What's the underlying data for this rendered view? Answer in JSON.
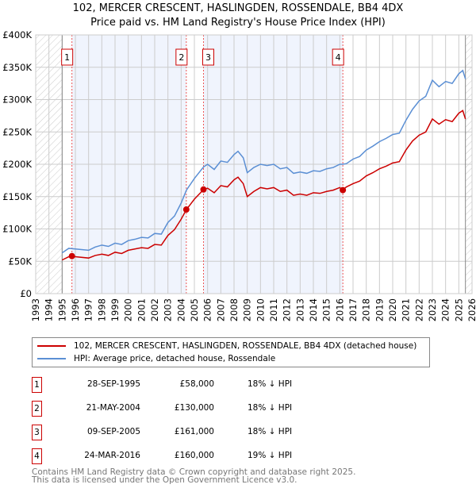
{
  "title": "102, MERCER CRESCENT, HASLINGDEN, ROSSENDALE, BB4 4DX",
  "subtitle": "Price paid vs. HM Land Registry's House Price Index (HPI)",
  "chart_data": {
    "type": "line",
    "xlim": [
      1993,
      2026
    ],
    "ylim": [
      0,
      400000
    ],
    "x_ticks": [
      "1993",
      "1994",
      "1995",
      "1996",
      "1997",
      "1998",
      "1999",
      "2000",
      "2001",
      "2002",
      "2003",
      "2004",
      "2005",
      "2006",
      "2007",
      "2008",
      "2009",
      "2010",
      "2011",
      "2012",
      "2013",
      "2014",
      "2015",
      "2016",
      "2017",
      "2018",
      "2019",
      "2020",
      "2021",
      "2022",
      "2023",
      "2024",
      "2025",
      "2026"
    ],
    "y_ticks": [
      {
        "v": 0,
        "label": "£0"
      },
      {
        "v": 50000,
        "label": "£50K"
      },
      {
        "v": 100000,
        "label": "£100K"
      },
      {
        "v": 150000,
        "label": "£150K"
      },
      {
        "v": 200000,
        "label": "£200K"
      },
      {
        "v": 250000,
        "label": "£250K"
      },
      {
        "v": 300000,
        "label": "£300K"
      },
      {
        "v": 350000,
        "label": "£350K"
      },
      {
        "v": 400000,
        "label": "£400K"
      }
    ],
    "series": [
      {
        "name": "102, MERCER CRESCENT, HASLINGDEN, ROSSENDALE, BB4 4DX (detached house)",
        "color": "#cc0000",
        "x": [
          1995,
          1995.5,
          1996,
          1997,
          1997.5,
          1998,
          1998.5,
          1999,
          1999.5,
          2000,
          2000.5,
          2001,
          2001.5,
          2002,
          2002.5,
          2003,
          2003.5,
          2004,
          2004.4,
          2005,
          2005.7,
          2006,
          2006.5,
          2007,
          2007.5,
          2008,
          2008.3,
          2008.7,
          2009,
          2009.5,
          2010,
          2010.5,
          2011,
          2011.5,
          2012,
          2012.5,
          2013,
          2013.5,
          2014,
          2014.5,
          2015,
          2015.5,
          2016,
          2016.2,
          2016.5,
          2017,
          2017.5,
          2018,
          2018.5,
          2019,
          2019.5,
          2020,
          2020.5,
          2021,
          2021.5,
          2022,
          2022.5,
          2023,
          2023.5,
          2024,
          2024.5,
          2025,
          2025.3,
          2025.5
        ],
        "y": [
          52000,
          57000,
          57000,
          55000,
          59000,
          61000,
          59000,
          64000,
          62000,
          67000,
          69000,
          71000,
          70000,
          76000,
          75000,
          90000,
          99000,
          115000,
          130000,
          146000,
          161000,
          163000,
          156000,
          167000,
          165000,
          176000,
          180000,
          170000,
          150000,
          158000,
          164000,
          162000,
          164000,
          158000,
          160000,
          152000,
          154000,
          152000,
          156000,
          155000,
          158000,
          160000,
          164000,
          160000,
          165000,
          170000,
          174000,
          182000,
          187000,
          193000,
          197000,
          202000,
          204000,
          222000,
          236000,
          245000,
          250000,
          270000,
          262000,
          269000,
          266000,
          279000,
          283000,
          270000
        ]
      },
      {
        "name": "HPI: Average price, detached house, Rossendale",
        "color": "#5b8fd4",
        "x": [
          1995,
          1995.5,
          1996,
          1997,
          1997.5,
          1998,
          1998.5,
          1999,
          1999.5,
          2000,
          2000.5,
          2001,
          2001.5,
          2002,
          2002.5,
          2003,
          2003.5,
          2004,
          2004.4,
          2005,
          2005.7,
          2006,
          2006.5,
          2007,
          2007.5,
          2008,
          2008.3,
          2008.7,
          2009,
          2009.5,
          2010,
          2010.5,
          2011,
          2011.5,
          2012,
          2012.5,
          2013,
          2013.5,
          2014,
          2014.5,
          2015,
          2015.5,
          2016,
          2016.2,
          2016.5,
          2017,
          2017.5,
          2018,
          2018.5,
          2019,
          2019.5,
          2020,
          2020.5,
          2021,
          2021.5,
          2022,
          2022.5,
          2023,
          2023.5,
          2024,
          2024.5,
          2025,
          2025.3,
          2025.5
        ],
        "y": [
          63000,
          70000,
          69000,
          67000,
          72000,
          75000,
          73000,
          78000,
          76000,
          82000,
          84000,
          87000,
          86000,
          93000,
          92000,
          110000,
          120000,
          140000,
          160000,
          178000,
          196000,
          200000,
          192000,
          205000,
          203000,
          215000,
          220000,
          210000,
          187000,
          195000,
          200000,
          198000,
          200000,
          193000,
          195000,
          186000,
          188000,
          186000,
          190000,
          189000,
          193000,
          195000,
          200000,
          200000,
          201000,
          208000,
          212000,
          222000,
          228000,
          235000,
          240000,
          246000,
          248000,
          268000,
          285000,
          298000,
          305000,
          330000,
          320000,
          328000,
          325000,
          340000,
          345000,
          332000
        ]
      }
    ],
    "sales": [
      {
        "id": "1",
        "x": 1995.74,
        "y": 58000
      },
      {
        "id": "2",
        "x": 2004.39,
        "y": 130000
      },
      {
        "id": "3",
        "x": 2005.69,
        "y": 161000
      },
      {
        "id": "4",
        "x": 2016.23,
        "y": 160000
      }
    ],
    "hatched_before": 1995,
    "hatched_after": 2025.5
  },
  "legend": {
    "property": "102, MERCER CRESCENT, HASLINGDEN, ROSSENDALE, BB4 4DX (detached house)",
    "hpi": "HPI: Average price, detached house, Rossendale"
  },
  "table": [
    {
      "num": "1",
      "date": "28-SEP-1995",
      "price": "£58,000",
      "hpi": "18% ↓ HPI"
    },
    {
      "num": "2",
      "date": "21-MAY-2004",
      "price": "£130,000",
      "hpi": "18% ↓ HPI"
    },
    {
      "num": "3",
      "date": "09-SEP-2005",
      "price": "£161,000",
      "hpi": "18% ↓ HPI"
    },
    {
      "num": "4",
      "date": "24-MAR-2016",
      "price": "£160,000",
      "hpi": "19% ↓ HPI"
    }
  ],
  "footer": {
    "line1": "Contains HM Land Registry data © Crown copyright and database right 2025.",
    "line2": "This data is licensed under the Open Government Licence v3.0."
  }
}
